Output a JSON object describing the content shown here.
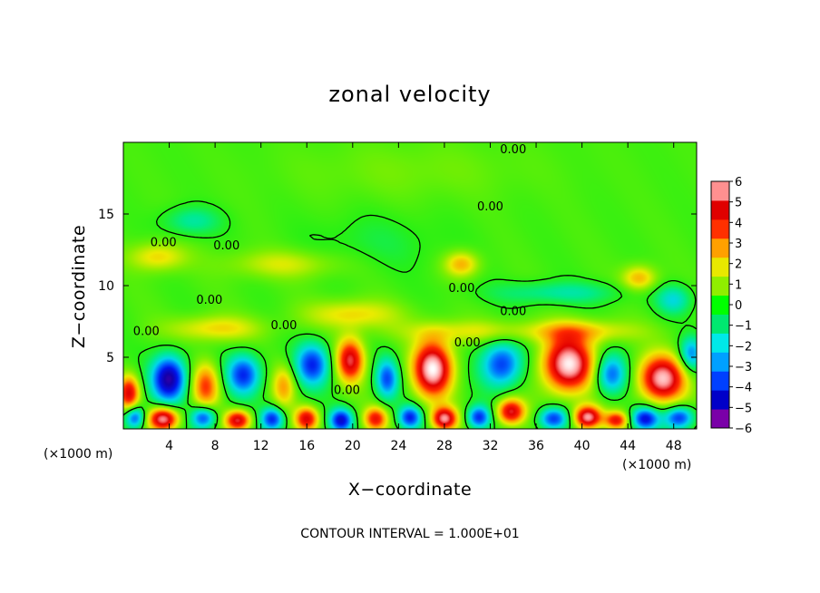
{
  "chart_data": {
    "type": "heatmap",
    "title": "zonal velocity",
    "xlabel": "X−coordinate",
    "ylabel": "Z−coordinate",
    "x_unit": "(×1000 m)",
    "y_unit": "(×1000 m)",
    "xlim": [
      0,
      50
    ],
    "ylim": [
      0,
      20
    ],
    "x_ticks": [
      4,
      8,
      12,
      16,
      20,
      24,
      28,
      32,
      36,
      40,
      44,
      48
    ],
    "y_ticks": [
      5,
      10,
      15
    ],
    "colorbar": {
      "ticks": [
        6,
        5,
        4,
        3,
        2,
        1,
        0,
        -1,
        -2,
        -3,
        -4,
        -5,
        -6
      ],
      "tick_labels": [
        "6",
        "5",
        "4",
        "3",
        "2",
        "1",
        "0",
        "−1",
        "−2",
        "−3",
        "−4",
        "−5",
        "−6"
      ],
      "range": [
        -6,
        6
      ],
      "colors": [
        "#7a00a8",
        "#0000c8",
        "#0040ff",
        "#00a0ff",
        "#00e8e8",
        "#00e870",
        "#00ff00",
        "#90ee00",
        "#e8e800",
        "#ffa000",
        "#ff3000",
        "#e00000",
        "#ff9090"
      ]
    },
    "contour_interval_note": "CONTOUR INTERVAL = 1.000E+01",
    "contour_label": "0.00",
    "background_value": 0.3,
    "features": [
      {
        "x": 4.0,
        "z": 3.5,
        "value": -5.5,
        "sx": 1.5,
        "sz": 1.6
      },
      {
        "x": 7.2,
        "z": 3.0,
        "value": 3.5,
        "sx": 1.2,
        "sz": 1.6
      },
      {
        "x": 10.5,
        "z": 3.8,
        "value": -4.0,
        "sx": 1.5,
        "sz": 1.4
      },
      {
        "x": 14.0,
        "z": 3.0,
        "value": 2.5,
        "sx": 1.0,
        "sz": 1.4
      },
      {
        "x": 16.5,
        "z": 4.5,
        "value": -4.0,
        "sx": 1.5,
        "sz": 1.5
      },
      {
        "x": 19.8,
        "z": 4.8,
        "value": 5.0,
        "sx": 1.2,
        "sz": 1.5
      },
      {
        "x": 23.0,
        "z": 3.5,
        "value": -3.5,
        "sx": 1.0,
        "sz": 1.4
      },
      {
        "x": 27.0,
        "z": 4.2,
        "value": 6.5,
        "sx": 1.7,
        "sz": 1.9
      },
      {
        "x": 33.0,
        "z": 4.5,
        "value": -4.0,
        "sx": 1.8,
        "sz": 1.6
      },
      {
        "x": 38.8,
        "z": 4.5,
        "value": 6.5,
        "sx": 2.2,
        "sz": 1.9
      },
      {
        "x": 42.5,
        "z": 3.8,
        "value": -3.5,
        "sx": 1.4,
        "sz": 1.4
      },
      {
        "x": 47.0,
        "z": 3.5,
        "value": 6.0,
        "sx": 2.0,
        "sz": 1.6
      },
      {
        "x": 49.5,
        "z": 5.2,
        "value": -3.0,
        "sx": 1.0,
        "sz": 1.2
      },
      {
        "x": 1.0,
        "z": 0.8,
        "value": -4.0,
        "sx": 0.9,
        "sz": 0.8
      },
      {
        "x": 3.5,
        "z": 0.7,
        "value": 6.0,
        "sx": 1.3,
        "sz": 0.8
      },
      {
        "x": 7.0,
        "z": 0.8,
        "value": -4.0,
        "sx": 1.1,
        "sz": 0.8
      },
      {
        "x": 10.0,
        "z": 0.6,
        "value": 5.0,
        "sx": 1.1,
        "sz": 0.7
      },
      {
        "x": 13.0,
        "z": 0.7,
        "value": -4.0,
        "sx": 1.0,
        "sz": 0.8
      },
      {
        "x": 16.0,
        "z": 0.7,
        "value": 4.5,
        "sx": 1.0,
        "sz": 0.8
      },
      {
        "x": 19.0,
        "z": 0.6,
        "value": -4.5,
        "sx": 1.0,
        "sz": 0.8
      },
      {
        "x": 22.0,
        "z": 0.7,
        "value": 4.0,
        "sx": 1.0,
        "sz": 0.8
      },
      {
        "x": 25.0,
        "z": 0.8,
        "value": -4.0,
        "sx": 1.0,
        "sz": 0.8
      },
      {
        "x": 28.0,
        "z": 0.7,
        "value": 5.5,
        "sx": 1.1,
        "sz": 0.8
      },
      {
        "x": 31.0,
        "z": 0.8,
        "value": -4.0,
        "sx": 1.0,
        "sz": 0.8
      },
      {
        "x": 33.8,
        "z": 1.2,
        "value": 5.0,
        "sx": 1.2,
        "sz": 0.9
      },
      {
        "x": 37.5,
        "z": 0.7,
        "value": -4.0,
        "sx": 1.3,
        "sz": 0.8
      },
      {
        "x": 40.5,
        "z": 0.8,
        "value": 6.0,
        "sx": 1.2,
        "sz": 0.8
      },
      {
        "x": 43.0,
        "z": 0.6,
        "value": 4.0,
        "sx": 1.0,
        "sz": 0.6
      },
      {
        "x": 45.5,
        "z": 0.7,
        "value": -4.5,
        "sx": 1.2,
        "sz": 0.8
      },
      {
        "x": 48.5,
        "z": 0.8,
        "value": -4.0,
        "sx": 1.3,
        "sz": 0.8
      },
      {
        "x": 0.5,
        "z": 2.5,
        "value": 4.5,
        "sx": 0.9,
        "sz": 1.2
      },
      {
        "x": 3.0,
        "z": 12.0,
        "value": 2.0,
        "sx": 2.5,
        "sz": 1.0
      },
      {
        "x": 6.0,
        "z": 14.5,
        "value": -1.5,
        "sx": 2.5,
        "sz": 1.0
      },
      {
        "x": 14.0,
        "z": 11.5,
        "value": 1.5,
        "sx": 5.0,
        "sz": 1.0
      },
      {
        "x": 22.0,
        "z": 13.0,
        "value": -0.6,
        "sx": 6.0,
        "sz": 2.0
      },
      {
        "x": 29.5,
        "z": 11.5,
        "value": 2.5,
        "sx": 1.5,
        "sz": 0.9
      },
      {
        "x": 38.0,
        "z": 9.5,
        "value": -1.5,
        "sx": 6.0,
        "sz": 0.8
      },
      {
        "x": 45.0,
        "z": 10.5,
        "value": 2.5,
        "sx": 1.5,
        "sz": 0.9
      },
      {
        "x": 48.0,
        "z": 9.0,
        "value": -2.0,
        "sx": 1.5,
        "sz": 1.0
      },
      {
        "x": 20.0,
        "z": 8.0,
        "value": 2.0,
        "sx": 4.0,
        "sz": 1.0
      },
      {
        "x": 8.0,
        "z": 7.0,
        "value": 2.0,
        "sx": 4.0,
        "sz": 0.9
      },
      {
        "x": 30.0,
        "z": 6.8,
        "value": 1.5,
        "sx": 6.0,
        "sz": 0.8
      },
      {
        "x": 40.0,
        "z": 6.8,
        "value": 2.0,
        "sx": 5.0,
        "sz": 0.8
      },
      {
        "x": 25.0,
        "z": 18.0,
        "value": 0.5,
        "sx": 10.0,
        "sz": 2.0
      }
    ]
  }
}
